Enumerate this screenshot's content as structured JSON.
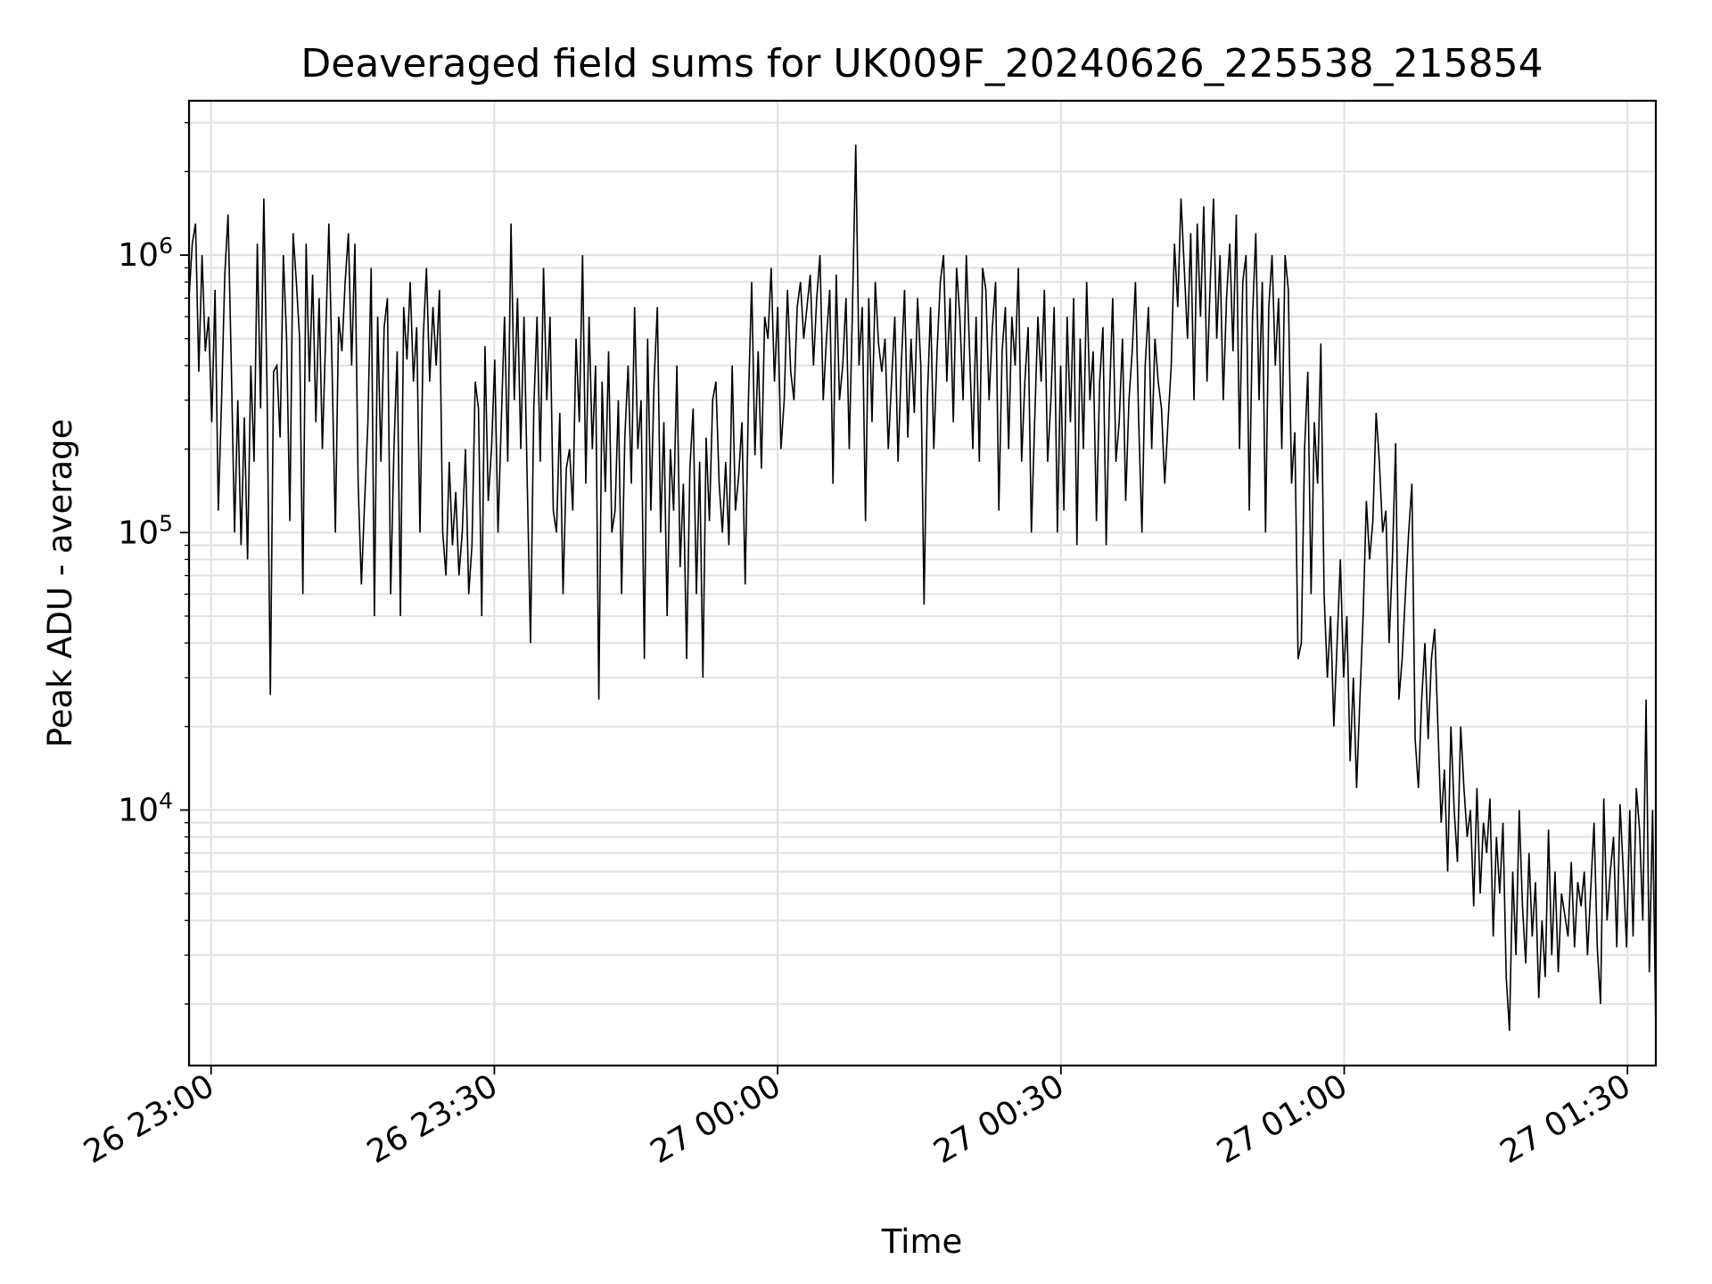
{
  "chart_data": {
    "type": "line",
    "title": "Deaveraged field sums for UK009F_20240626_225538_215854",
    "xlabel": "Time",
    "ylabel": "Peak ADU - average",
    "y_scale": "log",
    "ylim": [
      1200,
      3600000
    ],
    "xlim": [
      "26 22:57:40",
      "27 01:33:00"
    ],
    "x_ticks": [
      "26 23:00",
      "26 23:30",
      "27 00:00",
      "27 00:30",
      "27 01:00",
      "27 01:30"
    ],
    "y_ticks": [
      {
        "base": "10",
        "exp": "4",
        "value": 10000
      },
      {
        "base": "10",
        "exp": "5",
        "value": 100000
      },
      {
        "base": "10",
        "exp": "6",
        "value": 1000000
      }
    ],
    "grid": true,
    "line_color": "#000000",
    "grid_color": "#e3e3e3",
    "series": [
      {
        "x_start": "26 22:57:40",
        "x_end": "27 01:33:00",
        "values": [
          700000,
          1100000,
          1300000,
          380000,
          1000000,
          450000,
          600000,
          250000,
          750000,
          120000,
          300000,
          850000,
          1400000,
          400000,
          100000,
          300000,
          90000,
          260000,
          80000,
          400000,
          180000,
          1100000,
          280000,
          1600000,
          320000,
          26000,
          380000,
          400000,
          220000,
          1000000,
          500000,
          110000,
          1200000,
          800000,
          500000,
          60000,
          1100000,
          350000,
          850000,
          250000,
          700000,
          200000,
          500000,
          1300000,
          380000,
          100000,
          600000,
          450000,
          800000,
          1200000,
          400000,
          1100000,
          150000,
          65000,
          130000,
          250000,
          900000,
          50000,
          600000,
          180000,
          550000,
          700000,
          60000,
          200000,
          450000,
          50000,
          650000,
          420000,
          800000,
          350000,
          550000,
          100000,
          500000,
          900000,
          350000,
          650000,
          400000,
          750000,
          100000,
          70000,
          180000,
          90000,
          140000,
          70000,
          100000,
          200000,
          60000,
          90000,
          350000,
          280000,
          50000,
          470000,
          130000,
          200000,
          420000,
          100000,
          250000,
          600000,
          180000,
          1300000,
          300000,
          700000,
          200000,
          600000,
          150000,
          40000,
          280000,
          600000,
          180000,
          900000,
          300000,
          600000,
          120000,
          100000,
          270000,
          60000,
          170000,
          200000,
          120000,
          500000,
          250000,
          1000000,
          150000,
          600000,
          200000,
          400000,
          25000,
          350000,
          140000,
          450000,
          100000,
          120000,
          300000,
          60000,
          220000,
          400000,
          150000,
          650000,
          200000,
          300000,
          35000,
          500000,
          120000,
          350000,
          650000,
          100000,
          250000,
          50000,
          200000,
          120000,
          400000,
          75000,
          150000,
          35000,
          170000,
          280000,
          60000,
          180000,
          30000,
          220000,
          110000,
          300000,
          350000,
          150000,
          100000,
          180000,
          90000,
          400000,
          120000,
          160000,
          250000,
          65000,
          300000,
          800000,
          190000,
          450000,
          170000,
          600000,
          500000,
          900000,
          350000,
          650000,
          200000,
          300000,
          750000,
          380000,
          300000,
          650000,
          800000,
          500000,
          650000,
          850000,
          400000,
          700000,
          1000000,
          300000,
          500000,
          750000,
          150000,
          850000,
          300000,
          400000,
          700000,
          200000,
          650000,
          2500000,
          400000,
          650000,
          110000,
          700000,
          250000,
          800000,
          480000,
          380000,
          500000,
          200000,
          350000,
          600000,
          180000,
          400000,
          750000,
          220000,
          500000,
          270000,
          700000,
          400000,
          55000,
          300000,
          650000,
          200000,
          450000,
          800000,
          1000000,
          350000,
          700000,
          250000,
          900000,
          600000,
          300000,
          1000000,
          450000,
          200000,
          600000,
          180000,
          900000,
          750000,
          300000,
          550000,
          800000,
          120000,
          450000,
          650000,
          200000,
          600000,
          400000,
          900000,
          180000,
          350000,
          550000,
          100000,
          250000,
          600000,
          350000,
          750000,
          180000,
          300000,
          650000,
          100000,
          400000,
          120000,
          600000,
          250000,
          700000,
          90000,
          500000,
          200000,
          800000,
          300000,
          450000,
          110000,
          350000,
          550000,
          90000,
          300000,
          700000,
          180000,
          250000,
          500000,
          130000,
          300000,
          450000,
          800000,
          250000,
          100000,
          400000,
          650000,
          200000,
          500000,
          350000,
          280000,
          150000,
          250000,
          400000,
          1100000,
          650000,
          1600000,
          900000,
          500000,
          1200000,
          300000,
          1300000,
          600000,
          1500000,
          350000,
          800000,
          1600000,
          500000,
          1000000,
          300000,
          700000,
          1100000,
          450000,
          1400000,
          200000,
          800000,
          1000000,
          120000,
          600000,
          1200000,
          300000,
          800000,
          100000,
          650000,
          1000000,
          400000,
          700000,
          200000,
          1000000,
          750000,
          150000,
          230000,
          35000,
          40000,
          200000,
          380000,
          60000,
          250000,
          150000,
          480000,
          60000,
          30000,
          50000,
          20000,
          40000,
          80000,
          30000,
          50000,
          15000,
          30000,
          12000,
          25000,
          50000,
          130000,
          80000,
          110000,
          270000,
          180000,
          100000,
          120000,
          40000,
          80000,
          210000,
          25000,
          35000,
          60000,
          100000,
          150000,
          18000,
          12000,
          25000,
          40000,
          18000,
          35000,
          45000,
          20000,
          9000,
          14000,
          6000,
          20000,
          10000,
          6500,
          20000,
          12000,
          8000,
          10000,
          4500,
          12000,
          5000,
          9000,
          7000,
          11000,
          3500,
          8000,
          5000,
          9000,
          2500,
          1600,
          6000,
          3000,
          10000,
          4500,
          2800,
          7000,
          3500,
          5500,
          2100,
          4000,
          2500,
          8500,
          3000,
          6000,
          2600,
          5000,
          4200,
          3500,
          6500,
          3200,
          5500,
          4500,
          6000,
          3000,
          5200,
          9000,
          3200,
          2000,
          11000,
          4000,
          6000,
          8000,
          3200,
          10500,
          6000,
          3200,
          10000,
          3500,
          12000,
          8500,
          4000,
          25000,
          2600,
          10000,
          1600
        ]
      }
    ]
  }
}
